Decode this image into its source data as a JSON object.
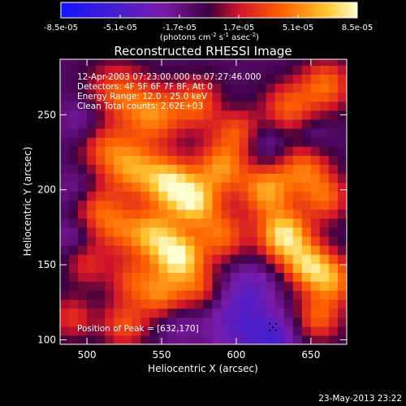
{
  "chart_data": {
    "type": "heatmap",
    "title": "Reconstructed RHESSI Image",
    "xlabel": "Heliocentric X (arcsec)",
    "ylabel": "Heliocentric Y (arcsec)",
    "xlim": [
      482,
      674
    ],
    "ylim": [
      97,
      287
    ],
    "xticks": [
      500,
      550,
      600,
      650
    ],
    "yticks": [
      100,
      150,
      200,
      250
    ],
    "colorbar": {
      "ticks": [
        "-8.5e-05",
        "-5.1e-05",
        "-1.7e-05",
        "1.7e-05",
        "5.1e-05",
        "8.5e-05"
      ],
      "unit_label": "(photons cm-2 s-1 asec-2)",
      "range": [
        -8.5e-05,
        8.5e-05
      ]
    },
    "annotations": [
      "12-Apr-2003 07:23:00.000 to 07:27:46.000",
      "Detectors: 4F 5F 6F 7F 8F, Att 0",
      "Energy Range: 12.0 - 25.0 keV",
      "Clean     Total counts: 2.62E+03"
    ],
    "peak_label": "Position of Peak = [632,170]",
    "peak": [
      632,
      170
    ],
    "grid": false,
    "colors": {
      "background": "#000000",
      "colormap": [
        "#1414ff",
        "#4a1ecc",
        "#7a1aa6",
        "#3c0040",
        "#d2142a",
        "#ff6400",
        "#ffc832",
        "#ffffd2"
      ]
    }
  },
  "footer": {
    "date_stamp": "23-May-2013 23:22"
  }
}
